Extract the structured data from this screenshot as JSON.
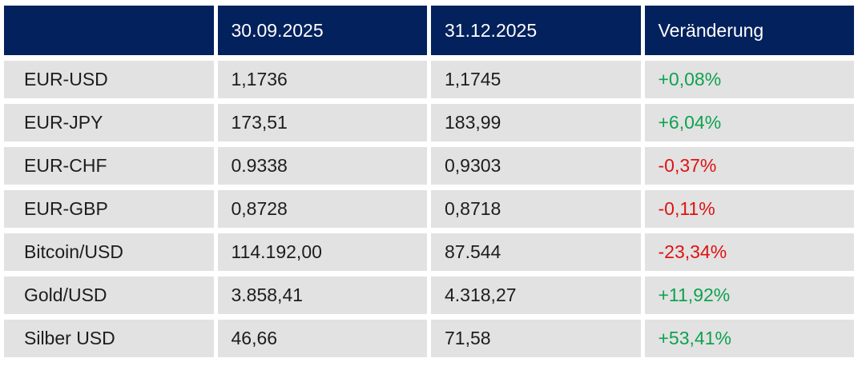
{
  "table": {
    "header": {
      "blank": "",
      "date_col_1": "30.09.2025",
      "date_col_2": "31.12.2025",
      "change_col": "Veränderung"
    },
    "rows": [
      {
        "label": "EUR-USD",
        "value_1": "1,1736",
        "value_2": "1,1745",
        "change": "+0,08%",
        "trend": "positive"
      },
      {
        "label": "EUR-JPY",
        "value_1": "173,51",
        "value_2": "183,99",
        "change": "+6,04%",
        "trend": "positive"
      },
      {
        "label": "EUR-CHF",
        "value_1": "0.9338",
        "value_2": "0,9303",
        "change": "-0,37%",
        "trend": "negative"
      },
      {
        "label": "EUR-GBP",
        "value_1": "0,8728",
        "value_2": "0,8718",
        "change": "-0,11%",
        "trend": "negative"
      },
      {
        "label": "Bitcoin/USD",
        "value_1": "114.192,00",
        "value_2": "87.544",
        "change": "-23,34%",
        "trend": "negative"
      },
      {
        "label": "Gold/USD",
        "value_1": "3.858,41",
        "value_2": "4.318,27",
        "change": "+11,92%",
        "trend": "positive"
      },
      {
        "label": "Silber USD",
        "value_1": "46,66",
        "value_2": "71,58",
        "change": "+53,41%",
        "trend": "positive"
      }
    ]
  },
  "colors": {
    "header_bg": "#03215c",
    "header_text": "#ffffff",
    "row_bg": "#e2e2e2",
    "text": "#1d1d1d",
    "positive": "#0ea24f",
    "negative": "#e01212"
  },
  "chart_data": {
    "type": "table",
    "title": "",
    "columns": [
      "",
      "30.09.2025",
      "31.12.2025",
      "Veränderung"
    ],
    "rows": [
      [
        "EUR-USD",
        "1,1736",
        "1,1745",
        "+0,08%"
      ],
      [
        "EUR-JPY",
        "173,51",
        "183,99",
        "+6,04%"
      ],
      [
        "EUR-CHF",
        "0.9338",
        "0,9303",
        "-0,37%"
      ],
      [
        "EUR-GBP",
        "0,8728",
        "0,8718",
        "-0,11%"
      ],
      [
        "Bitcoin/USD",
        "114.192,00",
        "87.544",
        "-23,34%"
      ],
      [
        "Gold/USD",
        "3.858,41",
        "4.318,27",
        "+11,92%"
      ],
      [
        "Silber USD",
        "46,66",
        "71,58",
        "+53,41%"
      ]
    ],
    "change_values_pct": [
      0.08,
      6.04,
      -0.37,
      -0.11,
      -23.34,
      11.92,
      53.41
    ],
    "layout_hints": {
      "header_style": "dark-navy, white text",
      "row_style": "light-gray cells separated by white gutters",
      "change_column_colored": true
    }
  }
}
